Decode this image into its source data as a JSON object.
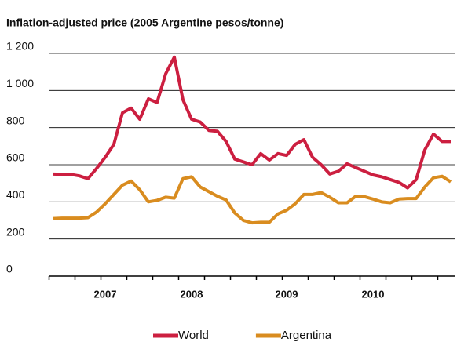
{
  "chart_data": {
    "type": "line",
    "title": "Inflation-adjusted price (2005 Argentine pesos/tonne)",
    "categories": [
      null,
      null,
      null,
      null,
      null,
      null,
      "2007",
      null,
      null,
      null,
      null,
      null,
      null,
      null,
      null,
      null,
      "2008",
      null,
      null,
      null,
      null,
      null,
      null,
      null,
      null,
      null,
      null,
      "2009",
      null,
      null,
      null,
      null,
      null,
      null,
      null,
      null,
      null,
      "2010",
      null,
      null,
      null,
      null,
      null,
      null,
      null,
      null,
      null
    ],
    "series": [
      {
        "name": "World",
        "color": "#cc1f40",
        "values": [
          550,
          548,
          548,
          540,
          525,
          580,
          640,
          710,
          880,
          905,
          845,
          955,
          935,
          1090,
          1180,
          950,
          845,
          830,
          785,
          780,
          725,
          630,
          615,
          600,
          660,
          625,
          660,
          650,
          710,
          735,
          640,
          600,
          550,
          565,
          605,
          585,
          565,
          545,
          535,
          520,
          505,
          475,
          520,
          680,
          765,
          725,
          725
        ]
      },
      {
        "name": "Argentina",
        "color": "#d98c1f",
        "values": [
          310,
          312,
          312,
          312,
          315,
          345,
          390,
          440,
          490,
          512,
          465,
          400,
          408,
          425,
          420,
          525,
          535,
          480,
          455,
          430,
          410,
          340,
          300,
          287,
          290,
          290,
          335,
          355,
          390,
          440,
          440,
          450,
          425,
          395,
          395,
          430,
          428,
          415,
          400,
          395,
          415,
          418,
          418,
          480,
          530,
          538,
          508
        ]
      }
    ],
    "ylim": [
      0,
      1200
    ],
    "yticks": [
      0,
      200,
      400,
      600,
      800,
      {
        "value": 1000,
        "label": "1 000"
      },
      {
        "value": 1200,
        "label": "1 200"
      }
    ],
    "grid": true,
    "legend": "bottom"
  }
}
